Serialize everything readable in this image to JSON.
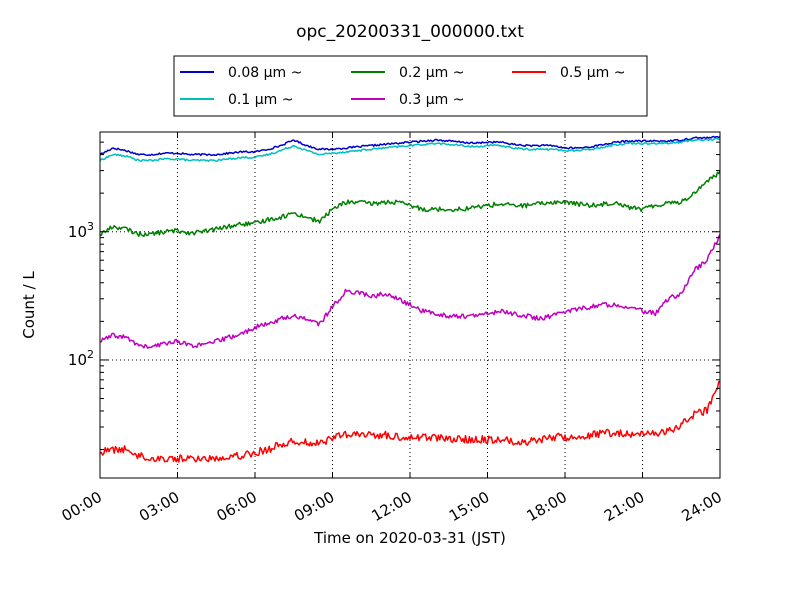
{
  "chart_data": {
    "type": "line",
    "title": "opc_20200331_000000.txt",
    "xlabel": "Time on 2020-03-31 (JST)",
    "ylabel": "Count / L",
    "x_unit": "hour of day",
    "xlim": [
      0,
      24
    ],
    "ylim": [
      12,
      6000
    ],
    "yscale": "log",
    "grid": true,
    "legend_position": "top-center",
    "x_ticks": [
      {
        "value": 0,
        "label": "00:00"
      },
      {
        "value": 3,
        "label": "03:00"
      },
      {
        "value": 6,
        "label": "06:00"
      },
      {
        "value": 9,
        "label": "09:00"
      },
      {
        "value": 12,
        "label": "12:00"
      },
      {
        "value": 15,
        "label": "15:00"
      },
      {
        "value": 18,
        "label": "18:00"
      },
      {
        "value": 21,
        "label": "21:00"
      },
      {
        "value": 24,
        "label": "24:00"
      }
    ],
    "y_ticks": [
      {
        "value": 100,
        "base": "10",
        "exp": "2"
      },
      {
        "value": 1000,
        "base": "10",
        "exp": "3"
      }
    ],
    "x": [
      0,
      0.5,
      1,
      1.5,
      2,
      2.5,
      3,
      3.5,
      4,
      4.5,
      5,
      5.5,
      6,
      6.5,
      7,
      7.5,
      8,
      8.5,
      9,
      9.5,
      10,
      10.5,
      11,
      11.5,
      12,
      12.5,
      13,
      13.5,
      14,
      14.5,
      15,
      15.5,
      16,
      16.5,
      17,
      17.5,
      18,
      18.5,
      19,
      19.5,
      20,
      20.5,
      21,
      21.5,
      22,
      22.5,
      23,
      23.5,
      24
    ],
    "series": [
      {
        "name": "0.08 μm ~",
        "color": "#0000cc",
        "values": [
          4000,
          4500,
          4300,
          4000,
          4000,
          4100,
          4100,
          4000,
          4000,
          4000,
          4100,
          4200,
          4200,
          4400,
          4700,
          5200,
          4700,
          4400,
          4400,
          4500,
          4600,
          4700,
          4800,
          4900,
          5000,
          5100,
          5200,
          5100,
          5000,
          4900,
          5000,
          5000,
          4800,
          4700,
          4700,
          4700,
          4500,
          4500,
          4600,
          4800,
          5000,
          5100,
          5100,
          5100,
          5100,
          5200,
          5400,
          5400,
          5500
        ]
      },
      {
        "name": "0.1 μm ~",
        "color": "#00bfbf",
        "values": [
          3600,
          4000,
          3900,
          3600,
          3600,
          3700,
          3700,
          3600,
          3600,
          3600,
          3700,
          3800,
          3800,
          4000,
          4300,
          4700,
          4300,
          4000,
          4100,
          4200,
          4300,
          4400,
          4500,
          4600,
          4700,
          4800,
          4900,
          4800,
          4700,
          4600,
          4700,
          4700,
          4500,
          4400,
          4400,
          4400,
          4300,
          4300,
          4400,
          4600,
          4800,
          4900,
          4900,
          4900,
          4900,
          5000,
          5200,
          5200,
          5300
        ]
      },
      {
        "name": "0.2 μm ~",
        "color": "#008000",
        "values": [
          950,
          1100,
          1050,
          960,
          960,
          1000,
          1020,
          980,
          1000,
          1050,
          1100,
          1150,
          1150,
          1250,
          1300,
          1400,
          1300,
          1200,
          1500,
          1700,
          1700,
          1650,
          1700,
          1700,
          1600,
          1500,
          1500,
          1500,
          1500,
          1550,
          1600,
          1650,
          1600,
          1600,
          1650,
          1700,
          1700,
          1650,
          1600,
          1650,
          1700,
          1550,
          1500,
          1600,
          1700,
          1700,
          2000,
          2500,
          2900
        ]
      },
      {
        "name": "0.3 μm ~",
        "color": "#bf00bf",
        "values": [
          140,
          155,
          150,
          130,
          125,
          135,
          140,
          130,
          130,
          140,
          150,
          160,
          180,
          190,
          210,
          220,
          210,
          190,
          260,
          340,
          340,
          310,
          330,
          300,
          270,
          240,
          230,
          220,
          220,
          220,
          230,
          240,
          230,
          220,
          210,
          220,
          240,
          250,
          260,
          270,
          270,
          260,
          240,
          230,
          300,
          330,
          500,
          600,
          950
        ]
      },
      {
        "name": "0.5 μm ~",
        "color": "#ff0000",
        "values": [
          19,
          20,
          20,
          18,
          17,
          17,
          17,
          17,
          17,
          17,
          18,
          18,
          19,
          20,
          22,
          23,
          23,
          22,
          25,
          26,
          26,
          26,
          26,
          25,
          25,
          25,
          25,
          24,
          24,
          24,
          24,
          24,
          23,
          23,
          24,
          25,
          25,
          25,
          26,
          27,
          27,
          26,
          26,
          27,
          28,
          31,
          38,
          40,
          70
        ]
      }
    ]
  }
}
